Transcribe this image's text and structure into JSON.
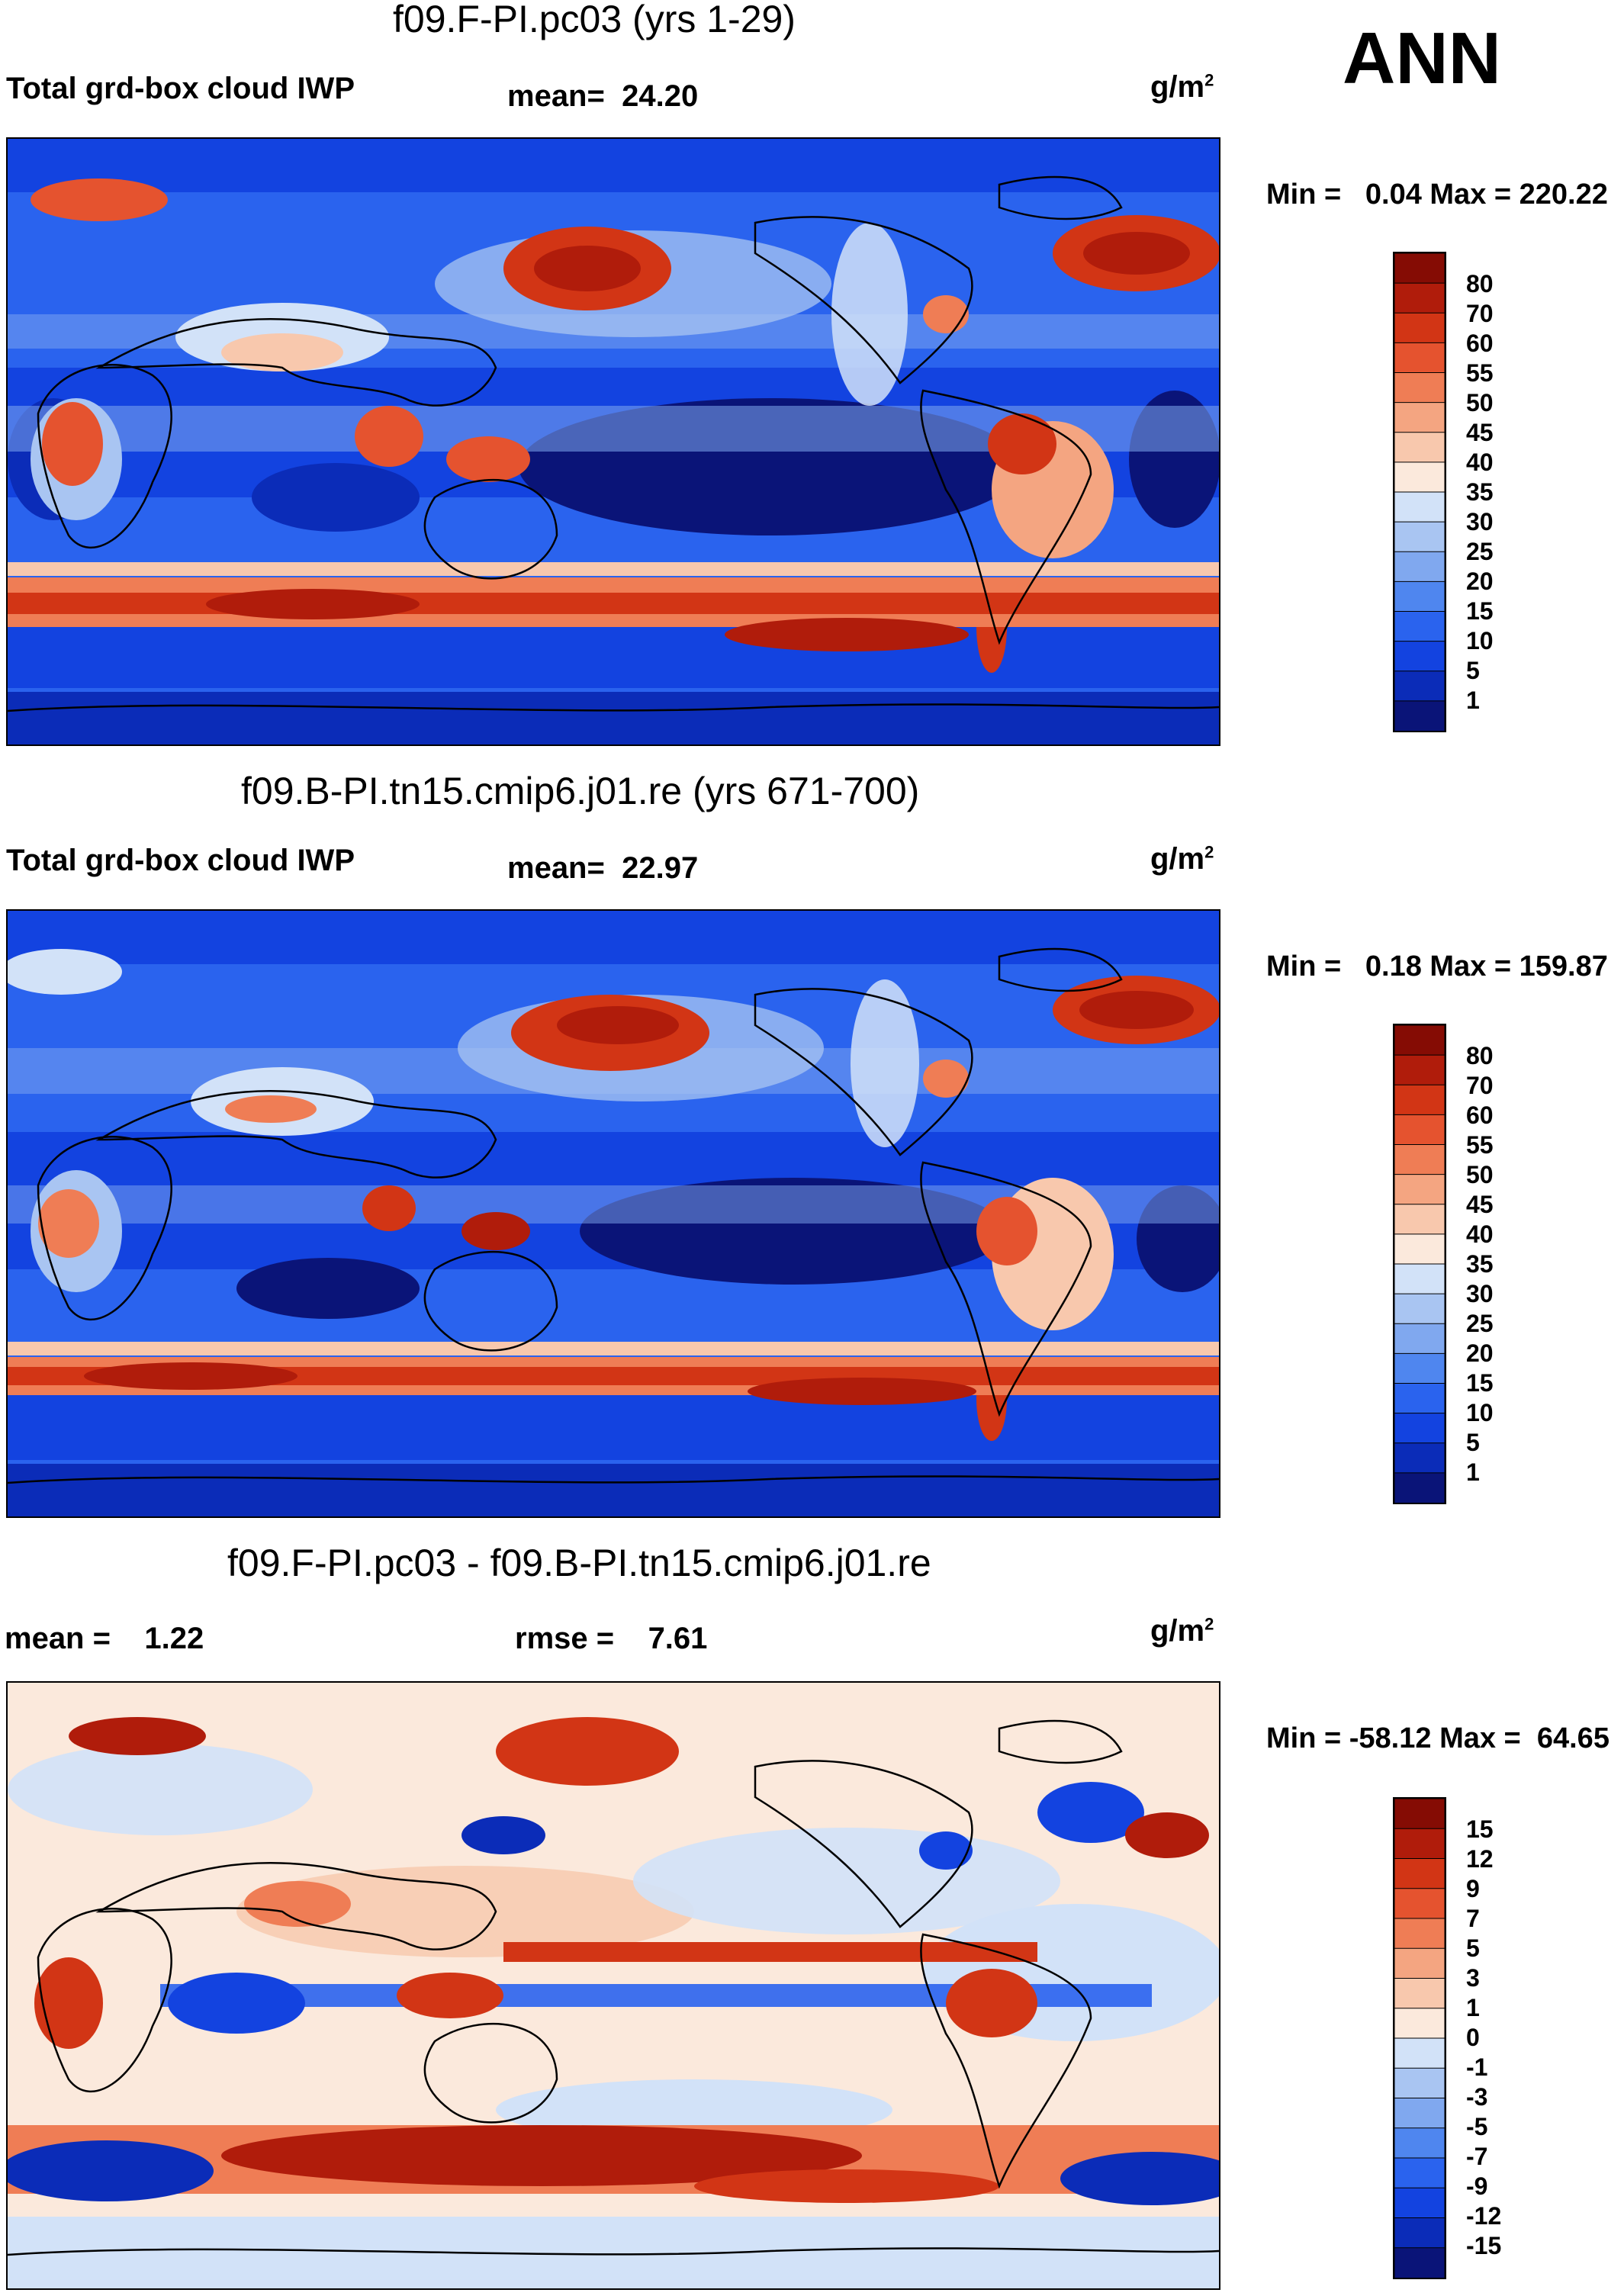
{
  "season_label": "ANN",
  "units": "g/m",
  "units_sup": "2",
  "colors": {
    "palette_standard": [
      "#0a1478",
      "#0b2cb8",
      "#1343e0",
      "#2a63ee",
      "#4f86ef",
      "#80a8ef",
      "#a9c5f2",
      "#d2e2f8",
      "#fbe9dc",
      "#f8c8ad",
      "#f4a581",
      "#ef7d55",
      "#e5532f",
      "#d23515",
      "#b01c0b",
      "#850c04"
    ],
    "palette_diff": [
      "#0a1478",
      "#0b2cb8",
      "#1343e0",
      "#2a63ee",
      "#4f86ef",
      "#80a8ef",
      "#a9c5f2",
      "#d2e2f8",
      "#fbe9dc",
      "#f8c8ad",
      "#f4a581",
      "#ef7d55",
      "#e5532f",
      "#d23515",
      "#b01c0b",
      "#850c04"
    ]
  },
  "chart_data": [
    {
      "type": "heatmap",
      "title": "f09.F-PI.pc03 (yrs 1-29)",
      "variable": "Total grd-box cloud IWP",
      "mean_label": "mean=",
      "mean_value": "24.20",
      "min_label": "Min =",
      "min_value": "0.04",
      "max_label": "Max =",
      "max_value": "220.22",
      "colorbar_levels": [
        "80",
        "70",
        "60",
        "55",
        "50",
        "45",
        "40",
        "35",
        "30",
        "25",
        "20",
        "15",
        "10",
        "5",
        "1"
      ]
    },
    {
      "type": "heatmap",
      "title": "f09.B-PI.tn15.cmip6.j01.re (yrs 671-700)",
      "variable": "Total grd-box cloud IWP",
      "mean_label": "mean=",
      "mean_value": "22.97",
      "min_label": "Min =",
      "min_value": "0.18",
      "max_label": "Max =",
      "max_value": "159.87",
      "colorbar_levels": [
        "80",
        "70",
        "60",
        "55",
        "50",
        "45",
        "40",
        "35",
        "30",
        "25",
        "20",
        "15",
        "10",
        "5",
        "1"
      ]
    },
    {
      "type": "heatmap",
      "title": "f09.F-PI.pc03 - f09.B-PI.tn15.cmip6.j01.re",
      "mean_label": "mean =",
      "mean_value": "1.22",
      "rmse_label": "rmse =",
      "rmse_value": "7.61",
      "min_label": "Min =",
      "min_value": "-58.12",
      "max_label": "Max =",
      "max_value": "64.65",
      "colorbar_levels": [
        "15",
        "12",
        "9",
        "7",
        "5",
        "3",
        "1",
        "0",
        "-1",
        "-3",
        "-5",
        "-7",
        "-9",
        "-12",
        "-15"
      ]
    }
  ]
}
